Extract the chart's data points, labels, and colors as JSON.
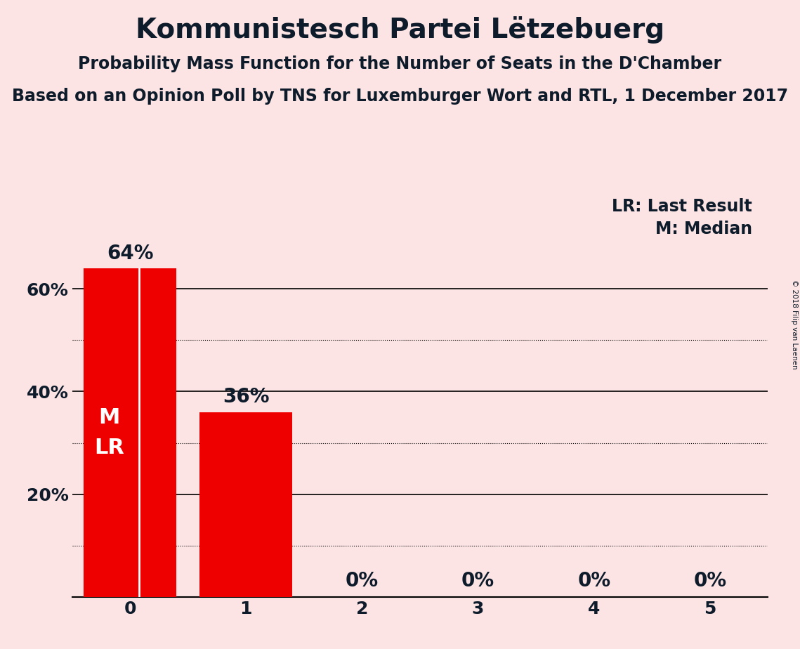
{
  "title": "Kommunistesch Partei Lëtzebuerg",
  "subtitle1": "Probability Mass Function for the Number of Seats in the D'Chamber",
  "subtitle2": "Based on an Opinion Poll by TNS for Luxemburger Wort and RTL, 1 December 2017",
  "categories": [
    0,
    1,
    2,
    3,
    4,
    5
  ],
  "values": [
    0.64,
    0.36,
    0.0,
    0.0,
    0.0,
    0.0
  ],
  "bar_color": "#ee0000",
  "background_color": "#fce4e4",
  "ylim": [
    0,
    0.72
  ],
  "yticks": [
    0.0,
    0.2,
    0.4,
    0.6
  ],
  "ytick_labels": [
    "",
    "20%",
    "40%",
    "60%"
  ],
  "solid_gridlines": [
    0.2,
    0.4,
    0.6
  ],
  "dotted_gridlines": [
    0.1,
    0.3,
    0.5
  ],
  "bar_labels": [
    "64%",
    "36%",
    "0%",
    "0%",
    "0%",
    "0%"
  ],
  "legend_lr": "LR: Last Result",
  "legend_m": "M: Median",
  "copyright": "© 2018 Filip van Laenen",
  "title_fontsize": 28,
  "subtitle1_fontsize": 17,
  "subtitle2_fontsize": 17,
  "tick_fontsize": 18,
  "bar_label_fontsize": 20,
  "legend_fontsize": 17,
  "inside_label_fontsize": 22
}
